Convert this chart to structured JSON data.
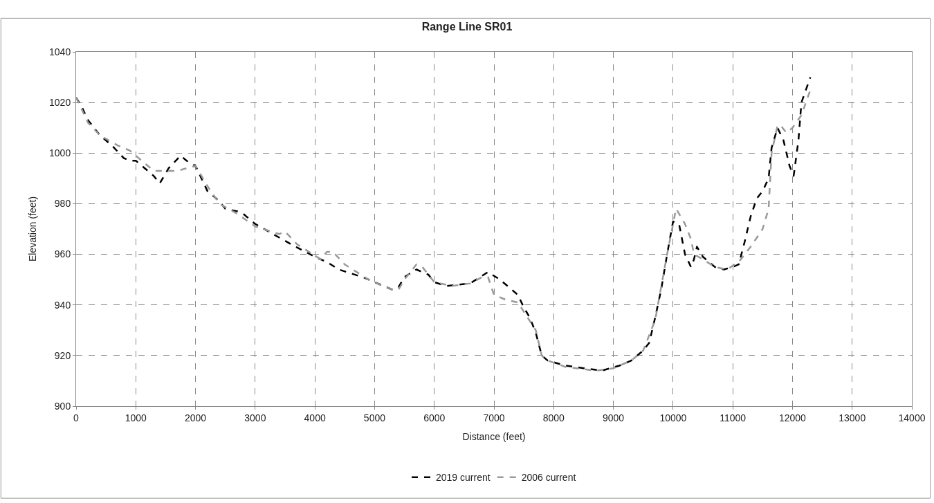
{
  "chart_data": {
    "type": "line",
    "title": "Range Line SR01",
    "xlabel": "Distance (feet)",
    "ylabel": "Elevation (feet)",
    "xlim": [
      0,
      14000
    ],
    "xticks": [
      0,
      1000,
      2000,
      3000,
      4000,
      5000,
      6000,
      7000,
      8000,
      9000,
      10000,
      11000,
      12000,
      13000,
      14000
    ],
    "ylim": [
      900,
      1040
    ],
    "yticks": [
      900,
      920,
      940,
      960,
      980,
      1000,
      1020,
      1040
    ],
    "grid": true,
    "legend": "bottom",
    "marker": "none",
    "line_style": "dashed",
    "series": [
      {
        "name": "2019 current",
        "color": "#000000",
        "x": [
          0,
          100,
          200,
          400,
          600,
          800,
          900,
          1000,
          1100,
          1300,
          1400,
          1550,
          1750,
          1850,
          2000,
          2100,
          2200,
          2400,
          2500,
          2700,
          2800,
          3000,
          3300,
          3600,
          4000,
          4200,
          4400,
          4800,
          5000,
          5300,
          5400,
          5500,
          5700,
          5900,
          6000,
          6200,
          6600,
          6900,
          7100,
          7300,
          7400,
          7500,
          7600,
          7700,
          7800,
          7900,
          8200,
          8500,
          8800,
          9100,
          9300,
          9500,
          9600,
          9700,
          9800,
          9900,
          10000,
          10100,
          10200,
          10300,
          10350,
          10400,
          10500,
          10700,
          10850,
          11000,
          11100,
          11200,
          11300,
          11400,
          11500,
          11600,
          11650,
          11750,
          11850,
          11950,
          12020,
          12100,
          12150,
          12300
        ],
        "values": [
          1022,
          1018,
          1013,
          1007,
          1003,
          998,
          997,
          997,
          995,
          991,
          988,
          994,
          999,
          997,
          995,
          990,
          985,
          981,
          978,
          977,
          976,
          972,
          968,
          964,
          959,
          957,
          954,
          951,
          949,
          946,
          947,
          951,
          954,
          952,
          949,
          947.5,
          948.5,
          953,
          950,
          946,
          944,
          939,
          935,
          929,
          920,
          918,
          916,
          915,
          914,
          916,
          918,
          922,
          925,
          935,
          946,
          960,
          973,
          972,
          960,
          955,
          958,
          963,
          959,
          955,
          954,
          955,
          956,
          965,
          975,
          982,
          985,
          990,
          1002,
          1010,
          1005,
          995,
          991,
          1005,
          1020,
          1030
        ]
      },
      {
        "name": "2006 current",
        "color": "#999999",
        "x": [
          0,
          200,
          400,
          700,
          900,
          1100,
          1300,
          1500,
          1700,
          2000,
          2200,
          2400,
          2700,
          3000,
          3400,
          3500,
          3700,
          4100,
          4200,
          4300,
          4500,
          4900,
          5300,
          5400,
          5500,
          5700,
          5800,
          6000,
          6300,
          6600,
          6800,
          6900,
          7000,
          7200,
          7400,
          7700,
          7800,
          7900,
          8200,
          8700,
          9000,
          9300,
          9500,
          9700,
          9900,
          10050,
          10200,
          10300,
          10350,
          10500,
          10700,
          10900,
          11100,
          11300,
          11500,
          11600,
          11650,
          11750,
          11800,
          11900,
          12000,
          12150,
          12300
        ],
        "values": [
          1022,
          1012,
          1007,
          1003,
          1001,
          997,
          993,
          993,
          993,
          995,
          987,
          980,
          976,
          971,
          968,
          969,
          964,
          958,
          961,
          961,
          956,
          950,
          946,
          946,
          950,
          956,
          955,
          949,
          947.5,
          948.5,
          951,
          951,
          944,
          942,
          941,
          930,
          920,
          918,
          915.5,
          914,
          915,
          918,
          922,
          934,
          960,
          978,
          972,
          966,
          960,
          958,
          955,
          954,
          957,
          963,
          970,
          978,
          1000,
          1011,
          1011,
          1008,
          1010,
          1015,
          1025
        ]
      }
    ]
  }
}
